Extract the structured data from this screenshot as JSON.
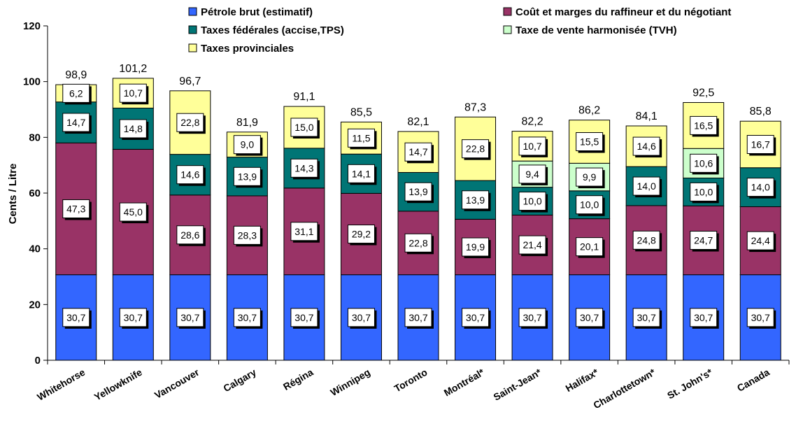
{
  "chart_data": {
    "type": "bar",
    "stacked": true,
    "title": "",
    "xlabel": "",
    "ylabel": "Cents / Litre",
    "ylim": [
      0,
      120
    ],
    "yticks": [
      0,
      20,
      40,
      60,
      80,
      100,
      120
    ],
    "grid": false,
    "legend_position": "top",
    "categories": [
      "Whitehorse",
      "Yellowknife",
      "Vancouver",
      "Calgary",
      "Régina",
      "Winnipeg",
      "Toronto",
      "Montréal*",
      "Saint-Jean*",
      "Halifax*",
      "Charlottetown*",
      "St. John's*",
      "Canada"
    ],
    "series": [
      {
        "name": "Pétrole brut (estimatif)",
        "color": "#3366FF",
        "values": [
          30.7,
          30.7,
          30.7,
          30.7,
          30.7,
          30.7,
          30.7,
          30.7,
          30.7,
          30.7,
          30.7,
          30.7,
          30.7
        ],
        "labels": [
          "30,7",
          "30,7",
          "30,7",
          "30,7",
          "30,7",
          "30,7",
          "30,7",
          "30,7",
          "30,7",
          "30,7",
          "30,7",
          "30,7",
          "30,7"
        ]
      },
      {
        "name": "Coût et marges du raffineur et du négotiant",
        "color": "#993366",
        "values": [
          47.3,
          45.0,
          28.6,
          28.3,
          31.1,
          29.2,
          22.8,
          19.9,
          21.4,
          20.1,
          24.8,
          24.7,
          24.4
        ],
        "labels": [
          "47,3",
          "45,0",
          "28,6",
          "28,3",
          "31,1",
          "29,2",
          "22,8",
          "19,9",
          "21,4",
          "20,1",
          "24,8",
          "24,7",
          "24,4"
        ]
      },
      {
        "name": "Taxes fédérales (accise,TPS)",
        "color": "#007575",
        "values": [
          14.7,
          14.8,
          14.6,
          13.9,
          14.3,
          14.1,
          13.9,
          13.9,
          10.0,
          10.0,
          14.0,
          10.0,
          14.0
        ],
        "labels": [
          "14,7",
          "14,8",
          "14,6",
          "13,9",
          "14,3",
          "14,1",
          "13,9",
          "13,9",
          "10,0",
          "10,0",
          "14,0",
          "10,0",
          "14,0"
        ]
      },
      {
        "name": "Taxe de vente harmonisée (TVH)",
        "color": "#CCFFCC",
        "values": [
          0,
          0,
          0,
          0,
          0,
          0,
          0,
          0,
          9.4,
          9.9,
          0,
          10.6,
          0
        ],
        "labels": [
          "",
          "",
          "",
          "",
          "",
          "",
          "",
          "",
          "9,4",
          "9,9",
          "",
          "10,6",
          ""
        ]
      },
      {
        "name": "Taxes provinciales",
        "color": "#FFFF99",
        "values": [
          6.2,
          10.7,
          22.8,
          9.0,
          15.0,
          11.5,
          14.7,
          22.8,
          10.7,
          15.5,
          14.6,
          16.5,
          16.7
        ],
        "labels": [
          "6,2",
          "10,7",
          "22,8",
          "9,0",
          "15,0",
          "11,5",
          "14,7",
          "22,8",
          "10,7",
          "15,5",
          "14,6",
          "16,5",
          "16,7"
        ]
      }
    ],
    "totals": [
      98.9,
      101.2,
      96.7,
      81.9,
      91.1,
      85.5,
      82.1,
      87.3,
      82.2,
      86.2,
      84.1,
      92.5,
      85.8
    ],
    "total_labels": [
      "98,9",
      "101,2",
      "96,7",
      "81,9",
      "91,1",
      "85,5",
      "82,1",
      "87,3",
      "82,2",
      "86,2",
      "84,1",
      "92,5",
      "85,8"
    ]
  }
}
